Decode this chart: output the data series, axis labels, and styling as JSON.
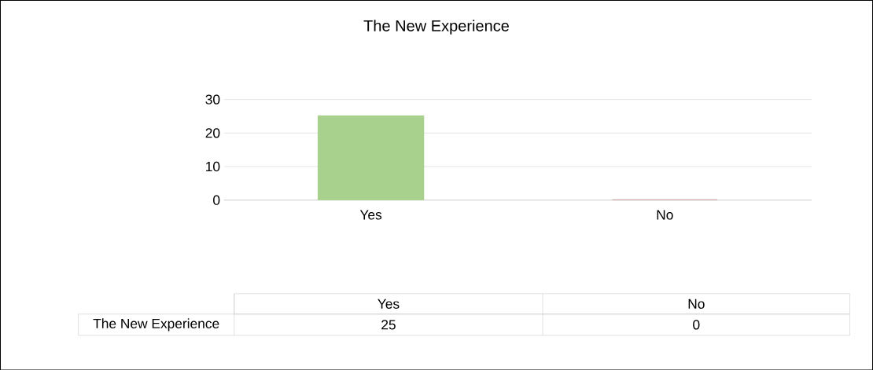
{
  "chart_data": {
    "type": "bar",
    "title": "The New Experience",
    "categories": [
      "Yes",
      "No"
    ],
    "series": [
      {
        "name": "The New Experience",
        "colors": [
          "#a9d18e",
          "#c49494"
        ],
        "values": [
          25,
          0
        ]
      }
    ],
    "ylim": [
      0,
      30
    ],
    "yticks": [
      0,
      10,
      20,
      30
    ],
    "grid": "y",
    "data_labels": true
  }
}
